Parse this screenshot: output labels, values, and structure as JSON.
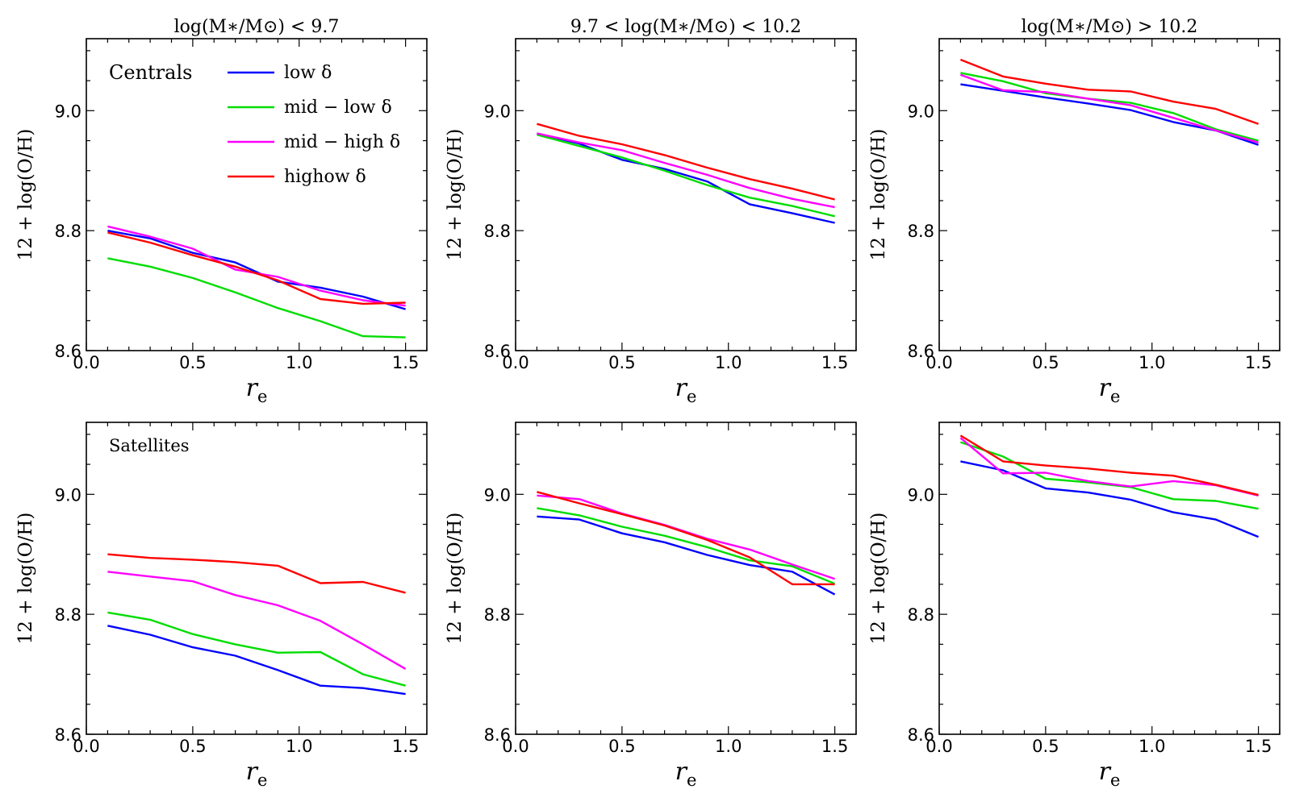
{
  "chart_data": [
    {
      "type": "line",
      "title": "log(M∗/M⊙) < 9.7",
      "annotation": "Centrals",
      "xlabel": "r",
      "xlabel_sub": "e",
      "ylabel": "12 + log(O/H)",
      "xlim": [
        0.0,
        1.6
      ],
      "ylim": [
        8.6,
        9.12
      ],
      "xticks": [
        "0.0",
        "0.5",
        "1.0",
        "1.5"
      ],
      "yticks": [
        "8.6",
        "8.8",
        "9.0"
      ],
      "x": [
        0.1,
        0.3,
        0.5,
        0.7,
        0.9,
        1.1,
        1.3,
        1.5
      ],
      "series": [
        {
          "name": "low δ",
          "color": "#0000ff",
          "values": [
            8.8,
            8.787,
            8.763,
            8.747,
            8.715,
            8.705,
            8.69,
            8.669
          ]
        },
        {
          "name": "mid − low δ",
          "color": "#00dd00",
          "values": [
            8.754,
            8.74,
            8.721,
            8.697,
            8.671,
            8.649,
            8.624,
            8.622
          ]
        },
        {
          "name": "mid − high δ",
          "color": "#ff00ff",
          "values": [
            8.807,
            8.79,
            8.77,
            8.735,
            8.723,
            8.7,
            8.684,
            8.675
          ]
        },
        {
          "name": "highow δ",
          "color": "#ff0000",
          "values": [
            8.797,
            8.78,
            8.759,
            8.74,
            8.717,
            8.686,
            8.678,
            8.68
          ]
        }
      ]
    },
    {
      "type": "line",
      "title": "9.7 < log(M∗/M⊙) < 10.2",
      "xlabel": "r",
      "xlabel_sub": "e",
      "ylabel": "12 + log(O/H)",
      "xlim": [
        0.0,
        1.6
      ],
      "ylim": [
        8.6,
        9.12
      ],
      "xticks": [
        "0.0",
        "0.5",
        "1.0",
        "1.5"
      ],
      "yticks": [
        "8.6",
        "8.8",
        "9.0"
      ],
      "x": [
        0.1,
        0.3,
        0.5,
        0.7,
        0.9,
        1.1,
        1.3,
        1.5
      ],
      "series": [
        {
          "name": "low δ",
          "color": "#0000ff",
          "values": [
            8.962,
            8.945,
            8.918,
            8.903,
            8.882,
            8.844,
            8.829,
            8.813
          ]
        },
        {
          "name": "mid − low δ",
          "color": "#00dd00",
          "values": [
            8.96,
            8.941,
            8.922,
            8.9,
            8.876,
            8.855,
            8.841,
            8.824
          ]
        },
        {
          "name": "mid − high δ",
          "color": "#ff00ff",
          "values": [
            8.962,
            8.947,
            8.934,
            8.913,
            8.893,
            8.871,
            8.853,
            8.839
          ]
        },
        {
          "name": "highow δ",
          "color": "#ff0000",
          "values": [
            8.978,
            8.958,
            8.944,
            8.926,
            8.905,
            8.886,
            8.87,
            8.852
          ]
        }
      ]
    },
    {
      "type": "line",
      "title": "log(M∗/M⊙) > 10.2",
      "xlabel": "r",
      "xlabel_sub": "e",
      "ylabel": "12 + log(O/H)",
      "xlim": [
        0.0,
        1.6
      ],
      "ylim": [
        8.6,
        9.12
      ],
      "xticks": [
        "0.0",
        "0.5",
        "1.0",
        "1.5"
      ],
      "yticks": [
        "8.6",
        "8.8",
        "9.0"
      ],
      "x": [
        0.1,
        0.3,
        0.5,
        0.7,
        0.9,
        1.1,
        1.3,
        1.5
      ],
      "series": [
        {
          "name": "low δ",
          "color": "#0000ff",
          "values": [
            9.044,
            9.033,
            9.022,
            9.012,
            9.001,
            8.981,
            8.967,
            8.943
          ]
        },
        {
          "name": "mid − low δ",
          "color": "#00dd00",
          "values": [
            9.063,
            9.049,
            9.029,
            9.02,
            9.013,
            8.996,
            8.969,
            8.95
          ]
        },
        {
          "name": "mid − high δ",
          "color": "#ff00ff",
          "values": [
            9.06,
            9.034,
            9.031,
            9.02,
            9.009,
            8.988,
            8.967,
            8.947
          ]
        },
        {
          "name": "highow δ",
          "color": "#ff0000",
          "values": [
            9.085,
            9.057,
            9.045,
            9.035,
            9.032,
            9.015,
            9.003,
            8.978
          ]
        }
      ]
    },
    {
      "type": "line",
      "annotation": "Satellites",
      "xlabel": "r",
      "xlabel_sub": "e",
      "ylabel": "12 + log(O/H)",
      "xlim": [
        0.0,
        1.6
      ],
      "ylim": [
        8.6,
        9.12
      ],
      "xticks": [
        "0.0",
        "0.5",
        "1.0",
        "1.5"
      ],
      "yticks": [
        "8.6",
        "8.8",
        "9.0"
      ],
      "x": [
        0.1,
        0.3,
        0.5,
        0.7,
        0.9,
        1.1,
        1.3,
        1.5
      ],
      "series": [
        {
          "name": "low δ",
          "color": "#0000ff",
          "values": [
            8.781,
            8.766,
            8.745,
            8.731,
            8.707,
            8.681,
            8.677,
            8.667
          ]
        },
        {
          "name": "mid − low δ",
          "color": "#00dd00",
          "values": [
            8.803,
            8.791,
            8.767,
            8.75,
            8.736,
            8.737,
            8.7,
            8.681
          ]
        },
        {
          "name": "mid − high δ",
          "color": "#ff00ff",
          "values": [
            8.871,
            8.863,
            8.855,
            8.832,
            8.815,
            8.789,
            8.75,
            8.709
          ]
        },
        {
          "name": "highow δ",
          "color": "#ff0000",
          "values": [
            8.9,
            8.894,
            8.891,
            8.887,
            8.881,
            8.852,
            8.854,
            8.836
          ]
        }
      ]
    },
    {
      "type": "line",
      "xlabel": "r",
      "xlabel_sub": "e",
      "ylabel": "12 + log(O/H)",
      "xlim": [
        0.0,
        1.6
      ],
      "ylim": [
        8.6,
        9.12
      ],
      "xticks": [
        "0.0",
        "0.5",
        "1.0",
        "1.5"
      ],
      "yticks": [
        "8.6",
        "8.8",
        "9.0"
      ],
      "x": [
        0.1,
        0.3,
        0.5,
        0.7,
        0.9,
        1.1,
        1.3,
        1.5
      ],
      "series": [
        {
          "name": "low δ",
          "color": "#0000ff",
          "values": [
            8.963,
            8.958,
            8.935,
            8.92,
            8.899,
            8.882,
            8.871,
            8.833
          ]
        },
        {
          "name": "mid − low δ",
          "color": "#00dd00",
          "values": [
            8.977,
            8.965,
            8.946,
            8.931,
            8.912,
            8.89,
            8.88,
            8.851
          ]
        },
        {
          "name": "mid − high δ",
          "color": "#ff00ff",
          "values": [
            8.998,
            8.992,
            8.968,
            8.949,
            8.926,
            8.908,
            8.883,
            8.859
          ]
        },
        {
          "name": "highow δ",
          "color": "#ff0000",
          "values": [
            9.004,
            8.985,
            8.967,
            8.948,
            8.924,
            8.895,
            8.85,
            8.85
          ]
        }
      ]
    },
    {
      "type": "line",
      "xlabel": "r",
      "xlabel_sub": "e",
      "ylabel": "12 + log(O/H)",
      "xlim": [
        0.0,
        1.6
      ],
      "ylim": [
        8.6,
        9.12
      ],
      "xticks": [
        "0.0",
        "0.5",
        "1.0",
        "1.5"
      ],
      "yticks": [
        "8.6",
        "8.8",
        "9.0"
      ],
      "x": [
        0.1,
        0.3,
        0.5,
        0.7,
        0.9,
        1.1,
        1.3,
        1.5
      ],
      "series": [
        {
          "name": "low δ",
          "color": "#0000ff",
          "values": [
            9.055,
            9.04,
            9.01,
            9.003,
            8.991,
            8.97,
            8.958,
            8.929
          ]
        },
        {
          "name": "mid − low δ",
          "color": "#00dd00",
          "values": [
            9.087,
            9.063,
            9.026,
            9.02,
            9.012,
            8.992,
            8.989,
            8.976
          ]
        },
        {
          "name": "mid − high δ",
          "color": "#ff00ff",
          "values": [
            9.094,
            9.035,
            9.036,
            9.022,
            9.013,
            9.022,
            9.015,
            8.998
          ]
        },
        {
          "name": "highow δ",
          "color": "#ff0000",
          "values": [
            9.098,
            9.055,
            9.048,
            9.043,
            9.036,
            9.031,
            9.016,
            8.999
          ]
        }
      ]
    }
  ]
}
